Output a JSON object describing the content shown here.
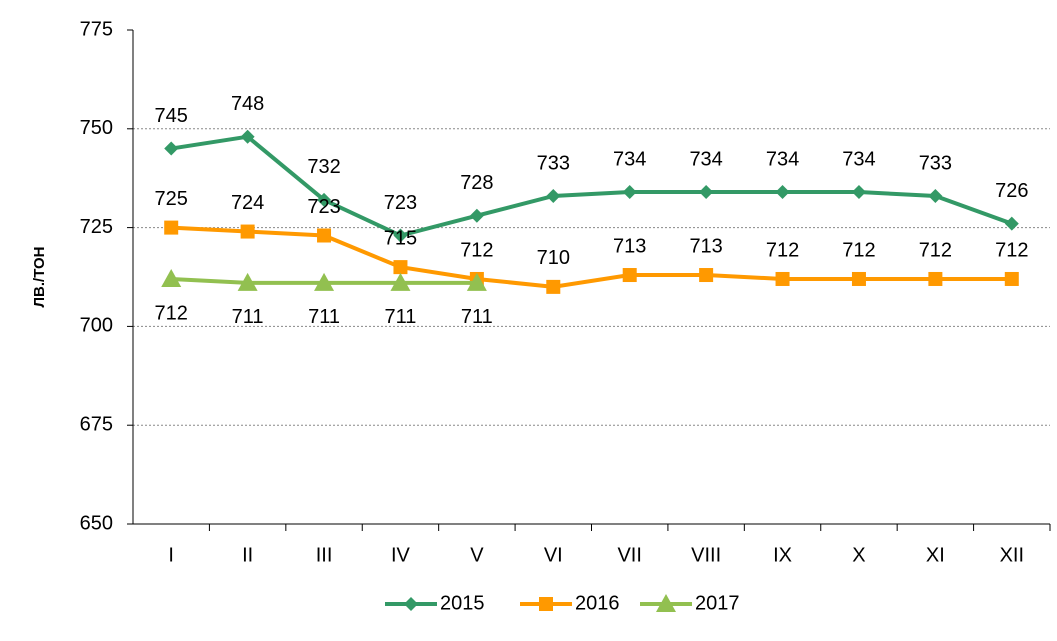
{
  "chart_data": {
    "type": "line",
    "y_label": "ЛВ./ТОН",
    "categories": [
      "I",
      "II",
      "III",
      "IV",
      "V",
      "VI",
      "VII",
      "VIII",
      "IX",
      "X",
      "XI",
      "XII"
    ],
    "series": [
      {
        "name": "2015",
        "color": "#339966",
        "marker": "diamond",
        "values": [
          745,
          748,
          732,
          723,
          728,
          733,
          734,
          734,
          734,
          734,
          733,
          726
        ]
      },
      {
        "name": "2016",
        "color": "#ff9900",
        "marker": "square",
        "values": [
          725,
          724,
          723,
          715,
          712,
          710,
          713,
          713,
          712,
          712,
          712,
          712
        ]
      },
      {
        "name": "2017",
        "color": "#92c050",
        "marker": "triangle",
        "values": [
          712,
          711,
          711,
          711,
          711,
          null,
          null,
          null,
          null,
          null,
          null,
          null
        ]
      }
    ],
    "ylim": [
      650,
      775
    ],
    "yticks": [
      650,
      675,
      700,
      725,
      750,
      775
    ],
    "grid": true,
    "legend": "bottom"
  }
}
